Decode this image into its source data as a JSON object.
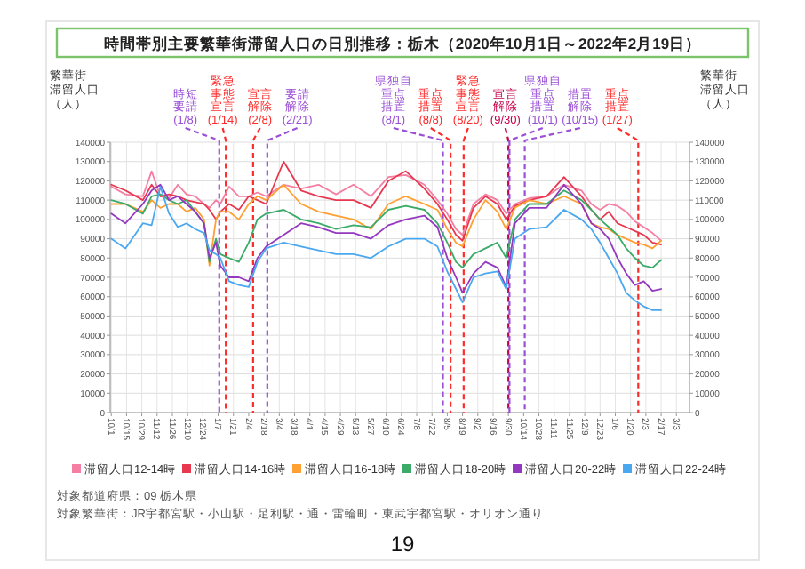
{
  "chart_data": {
    "type": "line",
    "title": "時間帯別主要繁華街滞留人口の日別推移：栃木（2020年10月1日～2022年2月19日）",
    "ylabel": "繁華街滞留人口（人）",
    "y2label": "繁華街滞留人口（人）",
    "x": [
      "2020-10-01",
      "2020-10-14",
      "2020-10-30",
      "2020-11-07",
      "2020-11-15",
      "2020-11-23",
      "2020-12-01",
      "2020-12-09",
      "2020-12-17",
      "2020-12-25",
      "2020-12-30",
      "2021-01-05",
      "2021-01-09",
      "2021-01-17",
      "2021-01-26",
      "2021-02-04",
      "2021-02-12",
      "2021-02-20",
      "2021-03-08",
      "2021-03-24",
      "2021-04-09",
      "2021-04-25",
      "2021-05-11",
      "2021-05-27",
      "2021-06-12",
      "2021-06-28",
      "2021-07-15",
      "2021-07-27",
      "2021-08-05",
      "2021-08-13",
      "2021-08-19",
      "2021-08-29",
      "2021-09-09",
      "2021-09-20",
      "2021-09-28",
      "2021-10-06",
      "2021-10-19",
      "2021-11-04",
      "2021-11-20",
      "2021-12-06",
      "2021-12-15",
      "2021-12-23",
      "2021-12-31",
      "2022-01-08",
      "2022-01-16",
      "2022-01-24",
      "2022-02-01",
      "2022-02-09",
      "2022-02-17"
    ],
    "series": [
      {
        "name": "滞留人口12-14時",
        "color": "#f57fa3",
        "values": [
          117000,
          113000,
          112000,
          125000,
          112000,
          111000,
          118000,
          113000,
          112000,
          108000,
          106000,
          110000,
          108000,
          117000,
          112000,
          112000,
          114000,
          112000,
          118000,
          116000,
          118000,
          113000,
          118000,
          112000,
          122000,
          123000,
          118000,
          110000,
          103000,
          95000,
          92000,
          108000,
          113000,
          110000,
          103000,
          108000,
          111000,
          112000,
          118000,
          115000,
          108000,
          105000,
          108000,
          107000,
          104000,
          99000,
          96000,
          93000,
          89000
        ]
      },
      {
        "name": "滞留人口14-16時",
        "color": "#e8384f",
        "values": [
          118000,
          115000,
          110000,
          118000,
          112000,
          113000,
          112000,
          110000,
          109000,
          108000,
          105000,
          100000,
          104000,
          108000,
          105000,
          112000,
          110000,
          108000,
          130000,
          115000,
          112000,
          110000,
          110000,
          106000,
          120000,
          125000,
          116000,
          108000,
          100000,
          92000,
          89000,
          106000,
          112000,
          108000,
          100000,
          107000,
          110000,
          112000,
          122000,
          112000,
          105000,
          100000,
          104000,
          98000,
          96000,
          94000,
          92000,
          88000,
          87000
        ]
      },
      {
        "name": "滞留人口16-18時",
        "color": "#ffa033",
        "values": [
          108000,
          108000,
          104000,
          110000,
          106000,
          108000,
          108000,
          104000,
          106000,
          100000,
          76000,
          100000,
          104000,
          104000,
          100000,
          108000,
          112000,
          110000,
          118000,
          108000,
          104000,
          102000,
          100000,
          95000,
          108000,
          112000,
          108000,
          105000,
          95000,
          88000,
          86000,
          100000,
          110000,
          104000,
          95000,
          106000,
          110000,
          108000,
          112000,
          108000,
          98000,
          96000,
          95000,
          92000,
          90000,
          88000,
          87000,
          85000,
          89000
        ]
      },
      {
        "name": "滞留人口18-20時",
        "color": "#3cab6a",
        "values": [
          110000,
          108000,
          103000,
          112000,
          113000,
          110000,
          108000,
          110000,
          104000,
          98000,
          78000,
          90000,
          82000,
          80000,
          78000,
          88000,
          100000,
          103000,
          105000,
          100000,
          98000,
          95000,
          97000,
          96000,
          105000,
          107000,
          105000,
          98000,
          88000,
          78000,
          75000,
          82000,
          85000,
          88000,
          80000,
          100000,
          108000,
          108000,
          115000,
          110000,
          105000,
          100000,
          96000,
          92000,
          85000,
          80000,
          76000,
          75000,
          79000
        ]
      },
      {
        "name": "滞留人口20-22時",
        "color": "#9438c0",
        "values": [
          103000,
          98000,
          108000,
          115000,
          118000,
          110000,
          112000,
          108000,
          104000,
          98000,
          80000,
          88000,
          76000,
          70000,
          70000,
          68000,
          80000,
          86000,
          92000,
          98000,
          96000,
          93000,
          93000,
          90000,
          97000,
          100000,
          102000,
          96000,
          80000,
          70000,
          62000,
          72000,
          78000,
          75000,
          65000,
          98000,
          106000,
          106000,
          118000,
          108000,
          98000,
          95000,
          90000,
          80000,
          72000,
          66000,
          68000,
          63000,
          64000
        ]
      },
      {
        "name": "滞留人口22-24時",
        "color": "#4aa8f0",
        "values": [
          90000,
          85000,
          98000,
          97000,
          117000,
          103000,
          96000,
          98000,
          95000,
          93000,
          84000,
          82000,
          80000,
          68000,
          66000,
          65000,
          78000,
          85000,
          88000,
          86000,
          84000,
          82000,
          82000,
          80000,
          86000,
          90000,
          90000,
          86000,
          73000,
          64000,
          57000,
          70000,
          72000,
          73000,
          64000,
          90000,
          95000,
          96000,
          105000,
          100000,
          95000,
          88000,
          80000,
          72000,
          62000,
          58000,
          55000,
          53000,
          53000
        ]
      }
    ],
    "xlim": [
      "2020-09-30",
      "2022-03-15"
    ],
    "xticks": [
      {
        "value": "2020-10-01",
        "label": "10/1"
      },
      {
        "value": "2020-10-15",
        "label": "10/15"
      },
      {
        "value": "2020-10-29",
        "label": "10/29"
      },
      {
        "value": "2020-11-12",
        "label": "11/12"
      },
      {
        "value": "2020-11-26",
        "label": "11/26"
      },
      {
        "value": "2020-12-10",
        "label": "12/10"
      },
      {
        "value": "2020-12-24",
        "label": "12/24"
      },
      {
        "value": "2021-01-07",
        "label": "1/7"
      },
      {
        "value": "2021-01-21",
        "label": "1/21"
      },
      {
        "value": "2021-02-04",
        "label": "2/4"
      },
      {
        "value": "2021-02-18",
        "label": "2/18"
      },
      {
        "value": "2021-03-04",
        "label": "3/4"
      },
      {
        "value": "2021-03-18",
        "label": "3/18"
      },
      {
        "value": "2021-04-01",
        "label": "4/1"
      },
      {
        "value": "2021-04-15",
        "label": "4/15"
      },
      {
        "value": "2021-04-29",
        "label": "4/29"
      },
      {
        "value": "2021-05-13",
        "label": "5/13"
      },
      {
        "value": "2021-05-27",
        "label": "5/27"
      },
      {
        "value": "2021-06-10",
        "label": "6/10"
      },
      {
        "value": "2021-06-24",
        "label": "6/24"
      },
      {
        "value": "2021-07-08",
        "label": "7/8"
      },
      {
        "value": "2021-07-22",
        "label": "7/22"
      },
      {
        "value": "2021-08-05",
        "label": "8/5"
      },
      {
        "value": "2021-08-19",
        "label": "8/19"
      },
      {
        "value": "2021-09-02",
        "label": "9/2"
      },
      {
        "value": "2021-09-16",
        "label": "9/16"
      },
      {
        "value": "2021-09-30",
        "label": "9/30"
      },
      {
        "value": "2021-10-14",
        "label": "10/14"
      },
      {
        "value": "2021-10-28",
        "label": "10/28"
      },
      {
        "value": "2021-11-11",
        "label": "11/11"
      },
      {
        "value": "2021-11-25",
        "label": "11/25"
      },
      {
        "value": "2021-12-09",
        "label": "12/9"
      },
      {
        "value": "2021-12-23",
        "label": "12/23"
      },
      {
        "value": "2022-01-06",
        "label": "1/6"
      },
      {
        "value": "2022-01-20",
        "label": "1/20"
      },
      {
        "value": "2022-02-03",
        "label": "2/3"
      },
      {
        "value": "2022-02-17",
        "label": "2/17"
      },
      {
        "value": "2022-03-03",
        "label": "3/3"
      }
    ],
    "ylim": [
      0,
      140000
    ],
    "yticks": [
      0,
      10000,
      20000,
      30000,
      40000,
      50000,
      60000,
      70000,
      80000,
      90000,
      100000,
      110000,
      120000,
      130000,
      140000
    ],
    "y2lim": [
      0,
      140000
    ],
    "y2ticks": [
      0,
      10000,
      20000,
      30000,
      40000,
      50000,
      60000,
      70000,
      80000,
      90000,
      100000,
      110000,
      120000,
      130000,
      140000
    ],
    "grid": true,
    "legend": "bottom",
    "line_style": "solid",
    "marker": "none",
    "ref_lines": [
      {
        "axis": "x",
        "value": "2021-01-08",
        "label": "時短要請(1/8)",
        "color": "#9b4fd6",
        "line_style": "dashed"
      },
      {
        "axis": "x",
        "value": "2021-01-14",
        "label": "緊急事態宣言(1/14)",
        "color": "#ff2a2a",
        "line_style": "dashed"
      },
      {
        "axis": "x",
        "value": "2021-02-08",
        "label": "宣言解除(2/8)",
        "color": "#ff2a2a",
        "line_style": "dashed"
      },
      {
        "axis": "x",
        "value": "2021-02-21",
        "label": "要請解除(2/21)",
        "color": "#9b4fd6",
        "line_style": "dashed"
      },
      {
        "axis": "x",
        "value": "2021-08-01",
        "label": "県独自重点措置(8/1)",
        "color": "#9b4fd6",
        "line_style": "dashed"
      },
      {
        "axis": "x",
        "value": "2021-08-08",
        "label": "重点措置(8/8)",
        "color": "#ff2a2a",
        "line_style": "dashed"
      },
      {
        "axis": "x",
        "value": "2021-08-20",
        "label": "緊急事態宣言(8/20)",
        "color": "#ff2a2a",
        "line_style": "dashed"
      },
      {
        "axis": "x",
        "value": "2021-09-30",
        "label": "宣言解除(9/30)",
        "color": "#c8004a",
        "line_style": "dashed"
      },
      {
        "axis": "x",
        "value": "2021-10-01",
        "label": "県独自重点措置(10/1)",
        "color": "#9b4fd6",
        "line_style": "dashed"
      },
      {
        "axis": "x",
        "value": "2021-10-15",
        "label": "措置解除(10/15)",
        "color": "#9b4fd6",
        "line_style": "dashed"
      },
      {
        "axis": "x",
        "value": "2022-01-27",
        "label": "重点措置(1/27)",
        "color": "#ff2a2a",
        "line_style": "dashed"
      }
    ],
    "annotations": [
      "対象都道府県：09 栃木県",
      "対象繁華街：JR宇都宮駅・小山駅・足利駅・通・雷輪町・東武宇都宮駅・オリオン通り",
      "19"
    ]
  }
}
